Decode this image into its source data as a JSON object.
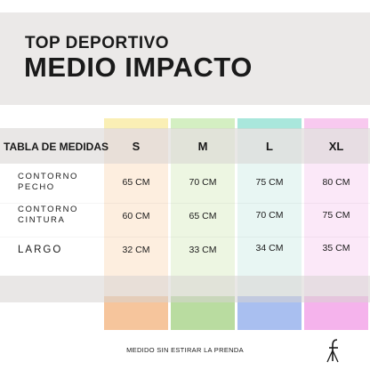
{
  "title": {
    "line1": "TOP DEPORTIVO",
    "line2": "MEDIO IMPACTO"
  },
  "table": {
    "header_label": "TABLA DE MEDIDAS",
    "sizes": [
      "S",
      "M",
      "L",
      "XL"
    ],
    "rows": [
      {
        "label_line1": "CONTORNO",
        "label_line2": "PECHO",
        "values": [
          "65 CM",
          "70 CM",
          "75 CM",
          "80 CM"
        ]
      },
      {
        "label_line1": "CONTORNO",
        "label_line2": "CINTURA",
        "values": [
          "60 CM",
          "65 CM",
          "70 CM",
          "75 CM"
        ]
      },
      {
        "label_line1": "LARGO",
        "label_line2": "",
        "values": [
          "32 CM",
          "33 CM",
          "34 CM",
          "35 CM"
        ]
      }
    ],
    "column_colors": [
      "#f6c59c",
      "#b9dca0",
      "#a9bff0",
      "#f5b3ec"
    ],
    "column_tints": [
      "#fdeedf",
      "#edf6e2",
      "#e8f6f3",
      "#fbe8f8"
    ],
    "column_caps": [
      "#faefb5",
      "#d4efc2",
      "#a9e7dc",
      "#f8c9ef"
    ]
  },
  "footer": {
    "note": "MEDIDO SIN ESTIRAR LA PRENDA"
  },
  "logo": {
    "icon": "f-hanger-logo"
  }
}
